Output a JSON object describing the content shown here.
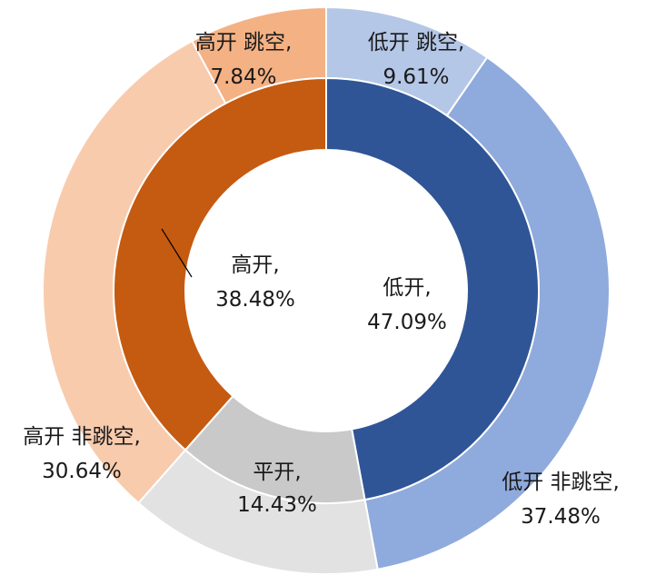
{
  "chart_data": {
    "type": "pie",
    "variant": "nested-donut",
    "inner": [
      {
        "name": "低开",
        "display_value": "47.09%",
        "value": 47.09,
        "color": "#2f5597"
      },
      {
        "name": "平开",
        "display_value": "14.43%",
        "value": 14.43,
        "color": "#c9c9c9"
      },
      {
        "name": "高开",
        "display_value": "38.48%",
        "value": 38.48,
        "color": "#c55a11"
      }
    ],
    "outer": [
      {
        "name": "低开 跳空",
        "display_value": "9.61%",
        "value": 9.61,
        "color": "#b4c7e7"
      },
      {
        "name": "低开 非跳空",
        "display_value": "37.48%",
        "value": 37.48,
        "color": "#8faadc"
      },
      {
        "name": "平开",
        "display_value": "",
        "value": 14.43,
        "color": "#e2e2e2"
      },
      {
        "name": "高开 非跳空",
        "display_value": "30.64%",
        "value": 30.64,
        "color": "#f8cbad"
      },
      {
        "name": "高开 跳空",
        "display_value": "7.84%",
        "value": 7.84,
        "color": "#f4b183"
      }
    ]
  }
}
